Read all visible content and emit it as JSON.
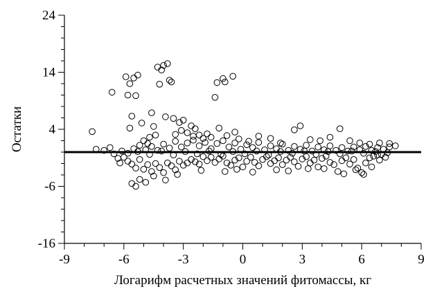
{
  "chart_data": {
    "type": "scatter",
    "title": "",
    "xlabel": "Логарифм расчетных значений фитомассы, кг",
    "ylabel": "Остатки",
    "xlim": [
      -9,
      9
    ],
    "ylim": [
      -16,
      24
    ],
    "x_ticks": [
      "-9",
      "-6",
      "-3",
      "0",
      "3",
      "6",
      "9"
    ],
    "y_ticks": [
      "24",
      "14",
      "4",
      "-6",
      "-16"
    ],
    "reference_line": {
      "y": 0
    },
    "grid": false,
    "legend": "none",
    "marker": "open-circle",
    "color": "#000000",
    "series": [
      {
        "points": [
          [
            -7.6,
            3.6
          ],
          [
            -7.4,
            0.5
          ],
          [
            -7.0,
            0.3
          ],
          [
            -6.7,
            0.8
          ],
          [
            -6.6,
            10.5
          ],
          [
            -6.5,
            -0.3
          ],
          [
            -6.3,
            -1.1
          ],
          [
            -6.1,
            0.2
          ],
          [
            -5.9,
            13.2
          ],
          [
            -5.8,
            10.0
          ],
          [
            -5.7,
            12.0
          ],
          [
            -5.7,
            4.2
          ],
          [
            -5.6,
            6.3
          ],
          [
            -5.6,
            -5.5
          ],
          [
            -5.5,
            13.0
          ],
          [
            -5.4,
            9.9
          ],
          [
            -5.4,
            -6.0
          ],
          [
            -5.3,
            13.5
          ],
          [
            -5.2,
            -4.8
          ],
          [
            -5.1,
            5.1
          ],
          [
            -5.0,
            2.0
          ],
          [
            -4.9,
            -5.3
          ],
          [
            -4.8,
            1.5
          ],
          [
            -4.7,
            2.6
          ],
          [
            -4.6,
            6.9
          ],
          [
            -4.5,
            4.5
          ],
          [
            -4.4,
            3.0
          ],
          [
            -4.3,
            14.9
          ],
          [
            -4.2,
            11.9
          ],
          [
            -4.1,
            14.4
          ],
          [
            -4.0,
            15.2
          ],
          [
            -3.9,
            6.2
          ],
          [
            -3.8,
            15.5
          ],
          [
            -3.7,
            12.6
          ],
          [
            -3.6,
            12.3
          ],
          [
            -3.9,
            -4.9
          ],
          [
            -3.5,
            5.9
          ],
          [
            -3.4,
            3.1
          ],
          [
            -3.2,
            5.2
          ],
          [
            -3.1,
            3.8
          ],
          [
            -3.0,
            5.6
          ],
          [
            -2.8,
            3.4
          ],
          [
            -2.6,
            4.6
          ],
          [
            -2.5,
            2.8
          ],
          [
            -2.4,
            4.1
          ],
          [
            -2.2,
            3.0
          ],
          [
            -2.0,
            2.4
          ],
          [
            -1.8,
            3.2
          ],
          [
            -1.6,
            2.6
          ],
          [
            -1.4,
            9.6
          ],
          [
            -1.3,
            12.2
          ],
          [
            -1.2,
            4.2
          ],
          [
            -1.0,
            12.9
          ],
          [
            -0.9,
            12.3
          ],
          [
            -0.8,
            2.9
          ],
          [
            -0.5,
            13.3
          ],
          [
            -0.4,
            3.5
          ],
          [
            -0.2,
            2.3
          ],
          [
            0.3,
            1.9
          ],
          [
            0.8,
            2.8
          ],
          [
            1.4,
            2.4
          ],
          [
            1.9,
            1.6
          ],
          [
            2.6,
            3.9
          ],
          [
            2.9,
            4.6
          ],
          [
            3.4,
            2.2
          ],
          [
            3.9,
            2.0
          ],
          [
            4.4,
            2.6
          ],
          [
            4.9,
            4.1
          ],
          [
            5.4,
            2.0
          ],
          [
            5.9,
            1.6
          ],
          [
            6.4,
            1.4
          ],
          [
            6.9,
            1.6
          ],
          [
            7.4,
            1.5
          ],
          [
            7.7,
            1.1
          ],
          [
            -6.0,
            -0.9
          ],
          [
            -5.8,
            -1.6
          ],
          [
            -5.6,
            -2.1
          ],
          [
            -5.4,
            -2.8
          ],
          [
            -5.2,
            -1.3
          ],
          [
            -5.0,
            -3.0
          ],
          [
            -4.8,
            -2.2
          ],
          [
            -4.6,
            -3.4
          ],
          [
            -4.4,
            -2.0
          ],
          [
            -4.2,
            -2.7
          ],
          [
            -4.0,
            -3.6
          ],
          [
            -3.8,
            -1.9
          ],
          [
            -3.6,
            -2.4
          ],
          [
            -3.4,
            -3.1
          ],
          [
            -3.2,
            -1.6
          ],
          [
            -3.0,
            -2.3
          ],
          [
            -2.8,
            -1.9
          ],
          [
            -2.6,
            -1.3
          ],
          [
            -2.4,
            -1.7
          ],
          [
            -2.2,
            -2.1
          ],
          [
            -2.0,
            -0.8
          ],
          [
            -1.8,
            -1.5
          ],
          [
            -1.6,
            -0.9
          ],
          [
            -1.4,
            -1.8
          ],
          [
            -1.2,
            -1.2
          ],
          [
            -1.0,
            -0.7
          ],
          [
            -0.8,
            -1.9
          ],
          [
            -0.6,
            -2.3
          ],
          [
            -0.4,
            -1.4
          ],
          [
            -0.2,
            -1.0
          ],
          [
            0.0,
            -2.6
          ],
          [
            0.2,
            -1.6
          ],
          [
            0.4,
            -0.9
          ],
          [
            0.6,
            -1.8
          ],
          [
            0.8,
            -2.4
          ],
          [
            1.0,
            -1.3
          ],
          [
            1.2,
            -0.8
          ],
          [
            1.4,
            -2.0
          ],
          [
            1.6,
            -1.5
          ],
          [
            1.8,
            -1.0
          ],
          [
            2.0,
            -2.2
          ],
          [
            2.2,
            -1.4
          ],
          [
            2.4,
            -0.9
          ],
          [
            2.6,
            -1.7
          ],
          [
            2.8,
            -2.5
          ],
          [
            3.0,
            -1.2
          ],
          [
            3.2,
            -0.8
          ],
          [
            3.4,
            -1.9
          ],
          [
            3.6,
            -1.4
          ],
          [
            3.8,
            -2.6
          ],
          [
            4.0,
            -1.1
          ],
          [
            4.2,
            -0.7
          ],
          [
            4.4,
            -1.8
          ],
          [
            4.6,
            -2.2
          ],
          [
            4.8,
            -3.4
          ],
          [
            5.0,
            -1.5
          ],
          [
            5.2,
            -1.0
          ],
          [
            5.4,
            -2.1
          ],
          [
            5.6,
            -1.3
          ],
          [
            5.8,
            -2.8
          ],
          [
            6.0,
            -3.6
          ],
          [
            6.2,
            -1.9
          ],
          [
            6.4,
            -1.0
          ],
          [
            6.6,
            -0.7
          ],
          [
            6.8,
            -0.5
          ],
          [
            7.0,
            -0.4
          ],
          [
            -5.5,
            0.6
          ],
          [
            -5.2,
            1.2
          ],
          [
            -4.9,
            0.4
          ],
          [
            -4.6,
            1.0
          ],
          [
            -4.3,
            0.3
          ],
          [
            -4.0,
            1.4
          ],
          [
            -3.7,
            0.7
          ],
          [
            -3.4,
            1.9
          ],
          [
            -3.1,
            0.9
          ],
          [
            -2.8,
            1.6
          ],
          [
            -2.5,
            2.1
          ],
          [
            -2.2,
            1.1
          ],
          [
            -1.9,
            1.7
          ],
          [
            -1.6,
            0.6
          ],
          [
            -1.3,
            1.5
          ],
          [
            -1.0,
            2.0
          ],
          [
            -0.7,
            0.9
          ],
          [
            -0.4,
            1.6
          ],
          [
            -0.1,
            0.5
          ],
          [
            0.2,
            1.3
          ],
          [
            0.5,
            0.8
          ],
          [
            0.8,
            1.7
          ],
          [
            1.1,
            0.4
          ],
          [
            1.4,
            1.1
          ],
          [
            1.7,
            0.6
          ],
          [
            2.0,
            1.4
          ],
          [
            2.3,
            0.3
          ],
          [
            2.6,
            1.0
          ],
          [
            2.9,
            0.5
          ],
          [
            3.2,
            1.2
          ],
          [
            3.5,
            0.2
          ],
          [
            3.8,
            0.9
          ],
          [
            4.1,
            0.4
          ],
          [
            4.4,
            1.1
          ],
          [
            4.7,
            0.3
          ],
          [
            5.0,
            0.8
          ],
          [
            5.3,
            0.2
          ],
          [
            5.6,
            0.9
          ],
          [
            5.9,
            0.4
          ],
          [
            6.2,
            1.0
          ],
          [
            6.5,
            0.3
          ],
          [
            6.8,
            0.8
          ],
          [
            7.1,
            0.5
          ],
          [
            7.4,
            0.9
          ],
          [
            -5.8,
            -0.2
          ],
          [
            -5.3,
            0.1
          ],
          [
            -4.7,
            -0.4
          ],
          [
            -4.1,
            0.2
          ],
          [
            -3.5,
            -0.5
          ],
          [
            -2.9,
            0.1
          ],
          [
            -2.3,
            -0.3
          ],
          [
            -1.7,
            0.2
          ],
          [
            -1.1,
            -0.4
          ],
          [
            -0.5,
            0.1
          ],
          [
            0.1,
            -0.3
          ],
          [
            0.7,
            0.2
          ],
          [
            1.3,
            -0.5
          ],
          [
            1.9,
            0.1
          ],
          [
            2.5,
            -0.2
          ],
          [
            3.1,
            0.2
          ],
          [
            3.7,
            -0.4
          ],
          [
            4.3,
            0.1
          ],
          [
            4.9,
            -0.3
          ],
          [
            5.5,
            0.2
          ],
          [
            6.1,
            -0.2
          ],
          [
            6.7,
            0.1
          ],
          [
            7.3,
            -0.1
          ],
          [
            -0.9,
            -3.4
          ],
          [
            -0.3,
            -3.0
          ],
          [
            1.7,
            -3.1
          ],
          [
            2.3,
            -3.3
          ],
          [
            3.3,
            -2.9
          ],
          [
            5.1,
            -3.8
          ],
          [
            6.1,
            -3.9
          ],
          [
            -6.2,
            -1.9
          ],
          [
            -4.5,
            -4.2
          ],
          [
            -3.3,
            -3.9
          ],
          [
            -2.1,
            -3.2
          ],
          [
            0.5,
            -3.5
          ],
          [
            4.1,
            -2.9
          ],
          [
            5.7,
            -3.1
          ],
          [
            6.5,
            -2.6
          ],
          [
            6.9,
            -1.4
          ],
          [
            7.2,
            -0.9
          ]
        ]
      }
    ]
  }
}
